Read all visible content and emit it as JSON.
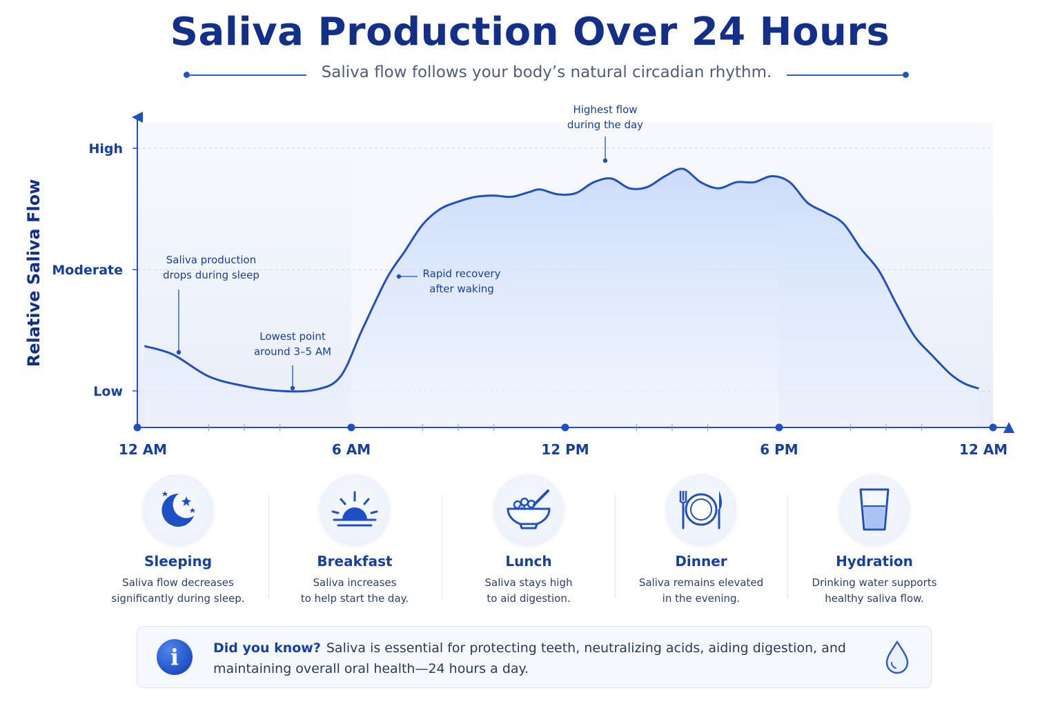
{
  "title": "Saliva Production Over 24 Hours",
  "subtitle": "Saliva flow follows your body’s natural circadian rhythm.",
  "colors": {
    "primary": "#1f4fc6",
    "title": "#12308a",
    "fill": "#d6e3fb"
  },
  "chart_data": {
    "type": "area",
    "title": "Saliva Production Over 24 Hours",
    "ylabel": "Relative Saliva Flow",
    "xlabel": "",
    "x_ticks": [
      "12 AM",
      "6 AM",
      "12 PM",
      "6 PM",
      "12 AM"
    ],
    "y_ticks": [
      "High",
      "Moderate",
      "Low"
    ],
    "y_scale": {
      "Low": 0,
      "Moderate": 1,
      "High": 2
    },
    "xlim": [
      0,
      24
    ],
    "ylim": [
      -0.3,
      2.25
    ],
    "grid": "horizontal dashed at High / Moderate / Low",
    "shaded_periods": [
      [
        0,
        6
      ],
      [
        18,
        24
      ]
    ],
    "series": [
      {
        "values": [
          [
            0.2,
            0.37
          ],
          [
            1.0,
            0.3
          ],
          [
            2.0,
            0.12
          ],
          [
            3.0,
            0.04
          ],
          [
            4.0,
            0.0
          ],
          [
            5.0,
            0.01
          ],
          [
            5.7,
            0.12
          ],
          [
            6.3,
            0.5
          ],
          [
            7.0,
            0.93
          ],
          [
            7.5,
            1.15
          ],
          [
            8.0,
            1.37
          ],
          [
            8.5,
            1.5
          ],
          [
            9.0,
            1.56
          ],
          [
            9.5,
            1.6
          ],
          [
            10.0,
            1.61
          ],
          [
            10.5,
            1.6
          ],
          [
            11.0,
            1.64
          ],
          [
            11.3,
            1.66
          ],
          [
            11.8,
            1.62
          ],
          [
            12.3,
            1.63
          ],
          [
            12.8,
            1.72
          ],
          [
            13.3,
            1.75
          ],
          [
            13.8,
            1.67
          ],
          [
            14.3,
            1.68
          ],
          [
            14.8,
            1.77
          ],
          [
            15.3,
            1.83
          ],
          [
            15.8,
            1.72
          ],
          [
            16.3,
            1.67
          ],
          [
            16.8,
            1.72
          ],
          [
            17.3,
            1.72
          ],
          [
            17.8,
            1.77
          ],
          [
            18.3,
            1.72
          ],
          [
            18.8,
            1.55
          ],
          [
            19.3,
            1.47
          ],
          [
            19.8,
            1.38
          ],
          [
            20.3,
            1.17
          ],
          [
            20.8,
            0.99
          ],
          [
            21.3,
            0.71
          ],
          [
            21.8,
            0.45
          ],
          [
            22.3,
            0.29
          ],
          [
            22.8,
            0.14
          ],
          [
            23.2,
            0.06
          ],
          [
            23.6,
            0.02
          ]
        ]
      }
    ],
    "annotations": [
      {
        "lines": [
          "Saliva production",
          "drops during sleep"
        ],
        "x": 1.0,
        "y": 0.33
      },
      {
        "lines": [
          "Lowest point",
          "around 3–5 AM"
        ],
        "x": 4.1,
        "y": 0.0
      },
      {
        "lines": [
          "Rapid recovery",
          "after waking"
        ],
        "x": 7.0,
        "y": 0.93
      },
      {
        "lines": [
          "Highest flow",
          "during the day"
        ],
        "x": 13.0,
        "y": 1.73
      }
    ]
  },
  "cards": [
    {
      "icon": "moon-stars-icon",
      "title": "Sleeping",
      "desc": [
        "Saliva flow decreases",
        "significantly during sleep."
      ]
    },
    {
      "icon": "sunrise-icon",
      "title": "Breakfast",
      "desc": [
        "Saliva increases",
        "to help start the day."
      ]
    },
    {
      "icon": "cereal-bowl-icon",
      "title": "Lunch",
      "desc": [
        "Saliva stays high",
        "to aid digestion."
      ]
    },
    {
      "icon": "plate-cutlery-icon",
      "title": "Dinner",
      "desc": [
        "Saliva remains elevated",
        "in the evening."
      ]
    },
    {
      "icon": "water-glass-icon",
      "title": "Hydration",
      "desc": [
        "Drinking water supports",
        "healthy saliva flow."
      ]
    }
  ],
  "info": {
    "icon": "info-icon",
    "heading": "Did you know?",
    "text": "Saliva is essential for protecting teeth, neutralizing acids, aiding digestion, and maintaining overall oral health—24 hours a day.",
    "end_icon": "water-drop-icon"
  }
}
